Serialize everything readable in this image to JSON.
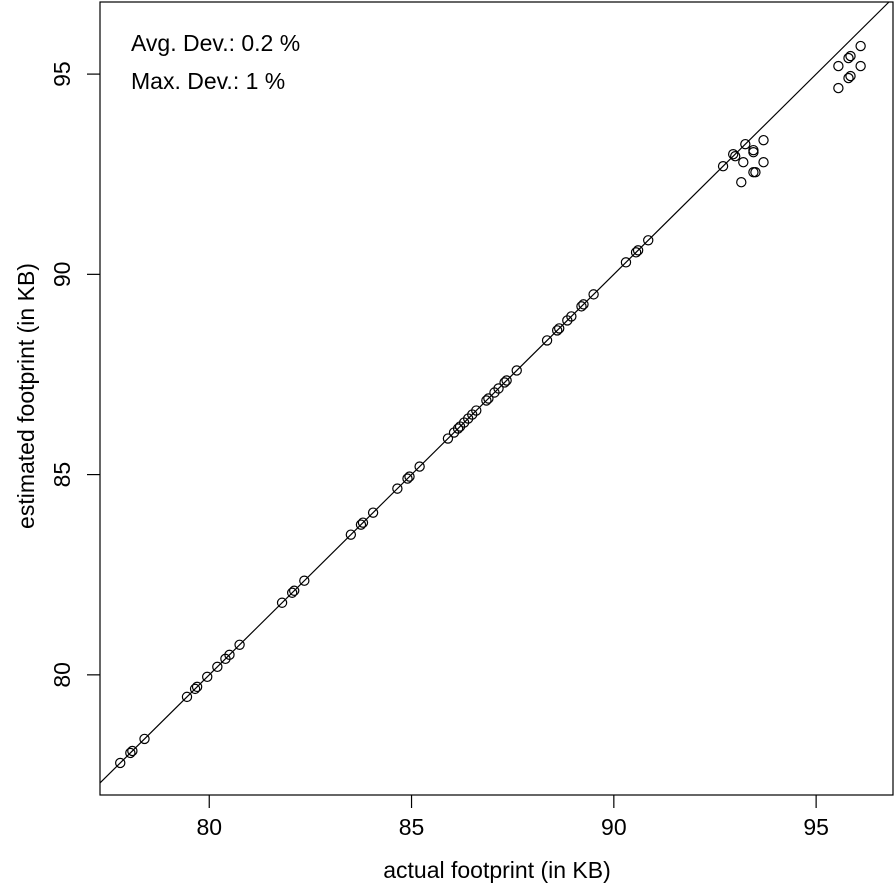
{
  "chart_data": {
    "type": "scatter",
    "title": "",
    "xlabel": "actual footprint (in KB)",
    "ylabel": "estimated footprint (in KB)",
    "xlim": [
      77.3,
      96.9
    ],
    "ylim": [
      77.0,
      96.8
    ],
    "xticks": [
      80,
      85,
      90,
      95
    ],
    "yticks": [
      80,
      85,
      90,
      95
    ],
    "grid": false,
    "legend": "none",
    "reference_line": "y = x",
    "annotations": [
      "Avg. Dev.: 0.2 %",
      "Max. Dev.: 1 %"
    ],
    "marker": "open-circle",
    "color": "#000000",
    "points": [
      [
        77.8,
        77.8
      ],
      [
        78.05,
        78.05
      ],
      [
        78.1,
        78.1
      ],
      [
        78.4,
        78.4
      ],
      [
        79.45,
        79.45
      ],
      [
        79.65,
        79.65
      ],
      [
        79.7,
        79.7
      ],
      [
        79.95,
        79.95
      ],
      [
        80.2,
        80.2
      ],
      [
        80.4,
        80.4
      ],
      [
        80.5,
        80.5
      ],
      [
        80.75,
        80.75
      ],
      [
        81.8,
        81.8
      ],
      [
        82.05,
        82.05
      ],
      [
        82.1,
        82.1
      ],
      [
        82.35,
        82.35
      ],
      [
        83.5,
        83.5
      ],
      [
        83.75,
        83.75
      ],
      [
        83.8,
        83.8
      ],
      [
        84.05,
        84.05
      ],
      [
        84.65,
        84.65
      ],
      [
        84.9,
        84.9
      ],
      [
        84.95,
        84.95
      ],
      [
        85.2,
        85.2
      ],
      [
        85.9,
        85.9
      ],
      [
        86.05,
        86.05
      ],
      [
        86.15,
        86.15
      ],
      [
        86.2,
        86.2
      ],
      [
        86.3,
        86.3
      ],
      [
        86.4,
        86.4
      ],
      [
        86.5,
        86.5
      ],
      [
        86.6,
        86.6
      ],
      [
        86.85,
        86.85
      ],
      [
        86.9,
        86.9
      ],
      [
        87.05,
        87.05
      ],
      [
        87.15,
        87.15
      ],
      [
        87.3,
        87.3
      ],
      [
        87.35,
        87.35
      ],
      [
        87.6,
        87.6
      ],
      [
        88.35,
        88.35
      ],
      [
        88.6,
        88.6
      ],
      [
        88.65,
        88.65
      ],
      [
        88.85,
        88.85
      ],
      [
        88.95,
        88.95
      ],
      [
        89.2,
        89.2
      ],
      [
        89.25,
        89.25
      ],
      [
        89.5,
        89.5
      ],
      [
        90.3,
        90.3
      ],
      [
        90.55,
        90.55
      ],
      [
        90.6,
        90.6
      ],
      [
        90.85,
        90.85
      ],
      [
        92.7,
        92.7
      ],
      [
        92.95,
        93.0
      ],
      [
        93.0,
        92.95
      ],
      [
        93.2,
        92.8
      ],
      [
        93.15,
        92.3
      ],
      [
        93.25,
        93.25
      ],
      [
        93.45,
        93.05
      ],
      [
        93.45,
        93.1
      ],
      [
        93.5,
        92.55
      ],
      [
        93.45,
        92.55
      ],
      [
        93.7,
        93.35
      ],
      [
        93.7,
        92.8
      ],
      [
        95.55,
        94.65
      ],
      [
        95.55,
        95.2
      ],
      [
        95.8,
        95.4
      ],
      [
        95.85,
        95.45
      ],
      [
        95.8,
        94.9
      ],
      [
        95.85,
        94.95
      ],
      [
        96.1,
        95.7
      ],
      [
        96.1,
        95.2
      ]
    ]
  }
}
